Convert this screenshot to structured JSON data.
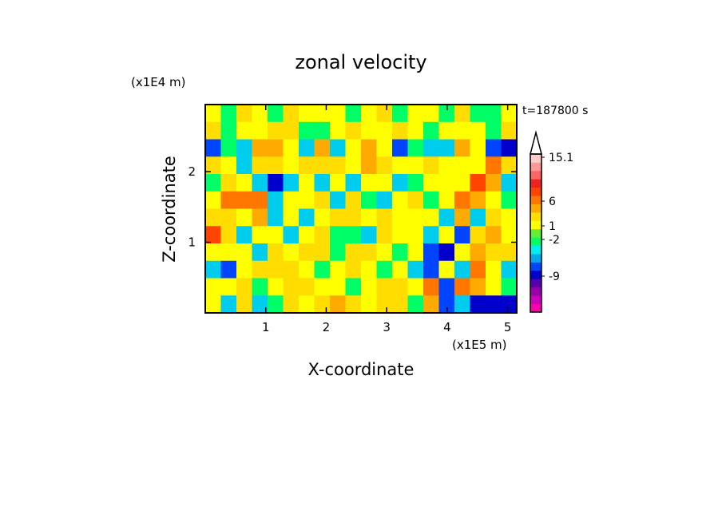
{
  "chart_data": {
    "type": "heatmap",
    "title": "zonal velocity",
    "xlabel": "X-coordinate",
    "ylabel": "Z-coordinate",
    "x_unit": "(x1E5 m)",
    "y_unit": "(x1E4 m)",
    "time_label": "t=187800 s",
    "xlim": [
      0,
      5.15
    ],
    "ylim": [
      0,
      2.95
    ],
    "x_ticks": [
      1,
      2,
      3,
      4,
      5
    ],
    "y_ticks": [
      1,
      2
    ],
    "colorbar": {
      "colors": [
        "#ff00aa",
        "#cc00bb",
        "#9900aa",
        "#5500aa",
        "#0000cc",
        "#0044ff",
        "#00aaee",
        "#00eeee",
        "#00ff66",
        "#66ee33",
        "#ffff00",
        "#ffdd00",
        "#ffaa00",
        "#ff7700",
        "#ff4400",
        "#ee2222",
        "#ff6666",
        "#ff9999",
        "#ffcccc"
      ],
      "labels": [
        "15.1",
        "6",
        "1",
        "-2",
        "-9"
      ],
      "label_values": [
        15.1,
        6,
        1,
        -2,
        -9
      ],
      "extend_max": true
    },
    "field": [
      [
        0.9,
        0.2,
        1.3,
        0.9,
        0.4,
        1.6,
        0.8,
        0.9,
        1.1,
        0.2,
        0.8,
        1.5,
        0.2,
        0.9,
        1.1,
        0.1,
        1.3,
        0.4,
        0.3,
        0.9
      ],
      [
        1.2,
        0.1,
        0.8,
        0.6,
        1.2,
        1.4,
        0.5,
        0.0,
        1.0,
        1.2,
        0.9,
        0.6,
        1.3,
        0.8,
        0.5,
        0.7,
        1.1,
        0.6,
        0.4,
        1.2
      ],
      [
        -1.5,
        0.4,
        -0.9,
        1.8,
        1.9,
        0.9,
        -1.4,
        1.9,
        -0.8,
        0.7,
        1.8,
        0.8,
        -1.6,
        0.2,
        -0.7,
        -1.3,
        2.5,
        0.8,
        -2.5,
        -3.5
      ],
      [
        1.5,
        0.8,
        -1.0,
        1.2,
        1.3,
        0.7,
        1.3,
        1.2,
        1.6,
        1.1,
        2.1,
        1.2,
        0.9,
        1.1,
        1.4,
        0.9,
        1.1,
        0.8,
        3.5,
        1.6
      ],
      [
        0.0,
        1.4,
        0.8,
        -0.9,
        -3.0,
        -1.2,
        0.8,
        -1.1,
        1.0,
        -0.8,
        0.9,
        0.6,
        -0.9,
        0.2,
        0.8,
        0.9,
        0.7,
        5.2,
        1.8,
        -1.3
      ],
      [
        0.8,
        2.7,
        3.5,
        2.9,
        -0.4,
        0.6,
        0.7,
        1.5,
        -1.0,
        1.6,
        0.4,
        -0.9,
        0.9,
        1.3,
        -0.2,
        0.6,
        3.0,
        1.8,
        0.9,
        0.4
      ],
      [
        1.5,
        1.2,
        0.7,
        1.9,
        -0.8,
        0.7,
        -1.0,
        0.8,
        1.7,
        1.5,
        0.8,
        1.4,
        0.9,
        1.1,
        1.0,
        -0.7,
        2.2,
        -0.9,
        1.3,
        1.1
      ],
      [
        5.8,
        1.3,
        -0.9,
        0.7,
        1.0,
        -0.9,
        0.9,
        1.2,
        0.4,
        0.0,
        -1.0,
        1.2,
        0.6,
        0.9,
        -0.5,
        1.1,
        -2.0,
        1.7,
        2.5,
        0.9
      ],
      [
        1.0,
        0.6,
        0.8,
        -0.9,
        1.4,
        0.9,
        1.2,
        1.5,
        0.3,
        1.4,
        1.6,
        0.6,
        0.1,
        0.6,
        -1.5,
        -4.0,
        0.6,
        1.8,
        1.2,
        1.3
      ],
      [
        -1.3,
        -1.8,
        0.9,
        1.3,
        1.2,
        1.4,
        1.0,
        0.4,
        0.8,
        1.5,
        0.6,
        0.0,
        1.0,
        -1.0,
        -2.5,
        0.8,
        -1.0,
        3.4,
        0.6,
        -0.8
      ],
      [
        0.7,
        0.6,
        1.4,
        0.5,
        0.8,
        1.3,
        1.5,
        1.0,
        0.7,
        0.5,
        0.7,
        1.2,
        1.4,
        0.8,
        3.0,
        -2.8,
        4.0,
        2.2,
        1.1,
        0.5
      ],
      [
        0.8,
        -0.9,
        1.6,
        -0.6,
        0.0,
        1.2,
        0.8,
        1.7,
        1.9,
        1.3,
        1.1,
        1.6,
        1.3,
        0.5,
        1.8,
        -1.5,
        -1.2,
        -3.5,
        -4.0,
        -3.0
      ]
    ]
  }
}
